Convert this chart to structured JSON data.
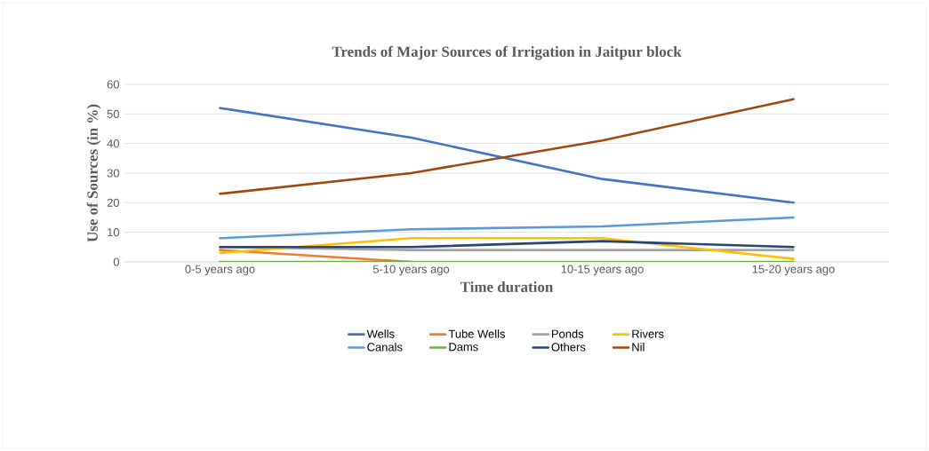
{
  "chart_data": {
    "type": "line",
    "title": "Trends of Major Sources of Irrigation in Jaitpur block",
    "xlabel": "Time duration",
    "ylabel": "Use of Sources (in %)",
    "categories": [
      "0-5 years ago",
      "5-10 years ago",
      "10-15 years ago",
      "15-20 years ago"
    ],
    "series": [
      {
        "name": "Wells",
        "color": "#4472c4",
        "values": [
          52,
          42,
          28,
          20
        ]
      },
      {
        "name": "Tube Wells",
        "color": "#ed7d31",
        "values": [
          4,
          0,
          null,
          null
        ]
      },
      {
        "name": "Ponds",
        "color": "#a5a5a5",
        "values": [
          5,
          4,
          4,
          4
        ]
      },
      {
        "name": "Rivers",
        "color": "#ffc000",
        "values": [
          3,
          8,
          8,
          1
        ]
      },
      {
        "name": "Canals",
        "color": "#5b9bd5",
        "values": [
          8,
          11,
          12,
          15
        ]
      },
      {
        "name": "Dams",
        "color": "#70ad47",
        "values": [
          0,
          0,
          0,
          0
        ]
      },
      {
        "name": "Others",
        "color": "#264478",
        "values": [
          5,
          5,
          7,
          5
        ]
      },
      {
        "name": "Nil",
        "color": "#9e480e",
        "values": [
          23,
          30,
          41,
          55
        ]
      }
    ],
    "ylim": [
      0,
      60
    ],
    "yticks": [
      0,
      10,
      20,
      30,
      40,
      50,
      60
    ],
    "grid": "y",
    "legend": "bottom",
    "marker": "none",
    "line_style": "solid"
  }
}
